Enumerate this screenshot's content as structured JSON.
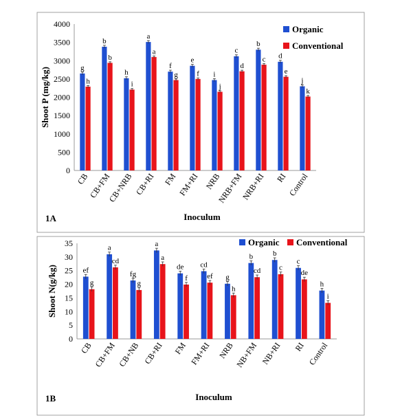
{
  "colors": {
    "organic": "#1F4FD1",
    "conventional": "#E8141B",
    "frame": "#8a8a8a"
  },
  "chart_data": [
    {
      "panel": "1A",
      "type": "bar",
      "ylabel": "Shoot P (mg/kg)",
      "xlabel": "Inoculum",
      "ylim": [
        0,
        4000
      ],
      "yticks": [
        0,
        500,
        1000,
        1500,
        2000,
        2500,
        3000,
        3500,
        4000
      ],
      "legend": "top-right",
      "grid": false,
      "error_bars": true,
      "categories": [
        "CB",
        "CB+FM",
        "CB+NRB",
        "CB+RI",
        "FM",
        "FM+RI",
        "NRB",
        "NRB+FM",
        "NRB+RI",
        "RI",
        "Control"
      ],
      "series": [
        {
          "name": "Organic",
          "values": [
            2650,
            3380,
            2520,
            3510,
            2700,
            2860,
            2470,
            3120,
            3300,
            2970,
            2300
          ],
          "errors": [
            40,
            40,
            40,
            40,
            40,
            40,
            40,
            40,
            40,
            40,
            40
          ],
          "letters": [
            "g",
            "b",
            "h",
            "a",
            "f",
            "e",
            "i",
            "c",
            "b",
            "d",
            "j"
          ]
        },
        {
          "name": "Conventional",
          "values": [
            2290,
            2940,
            2210,
            3100,
            2470,
            2500,
            2150,
            2710,
            2890,
            2560,
            2020
          ],
          "errors": [
            30,
            30,
            30,
            30,
            30,
            30,
            30,
            30,
            30,
            30,
            30
          ],
          "letters": [
            "h",
            "b",
            "i",
            "a",
            "g",
            "f",
            "j",
            "d",
            "c",
            "e",
            "k"
          ]
        }
      ]
    },
    {
      "panel": "1B",
      "type": "bar",
      "ylabel": "Shoot N(g/kg)",
      "xlabel": "Inoculum",
      "ylim": [
        0,
        35
      ],
      "yticks": [
        0,
        5,
        10,
        15,
        20,
        25,
        30,
        35
      ],
      "legend": "top-right",
      "grid": false,
      "error_bars": true,
      "categories": [
        "CB",
        "CB+FM",
        "CB+NB",
        "CB+RI",
        "FM",
        "FM+RI",
        "NRB",
        "NB+FM",
        "NB+RI",
        "RI",
        "Control"
      ],
      "series": [
        {
          "name": "Organic",
          "values": [
            22.8,
            31.0,
            21.4,
            32.4,
            24.0,
            24.8,
            20.2,
            27.8,
            28.9,
            26.0,
            17.7
          ],
          "errors": [
            0.8,
            0.8,
            0.8,
            0.8,
            0.8,
            0.8,
            0.8,
            0.8,
            0.8,
            0.8,
            0.8
          ],
          "letters": [
            "ef",
            "a",
            "fg",
            "a",
            "de",
            "cd",
            "g",
            "b",
            "b",
            "c",
            "h"
          ]
        },
        {
          "name": "Conventional",
          "values": [
            18.2,
            26.2,
            17.9,
            27.4,
            19.9,
            20.6,
            16.0,
            22.6,
            23.7,
            21.8,
            13.2
          ],
          "errors": [
            0.8,
            0.8,
            0.8,
            0.8,
            0.8,
            0.8,
            0.8,
            0.8,
            0.8,
            0.8,
            0.8
          ],
          "letters": [
            "g",
            "cd",
            "g",
            "a",
            "f",
            "ef",
            "h",
            "cd",
            "c",
            "de",
            "i"
          ]
        }
      ]
    }
  ]
}
